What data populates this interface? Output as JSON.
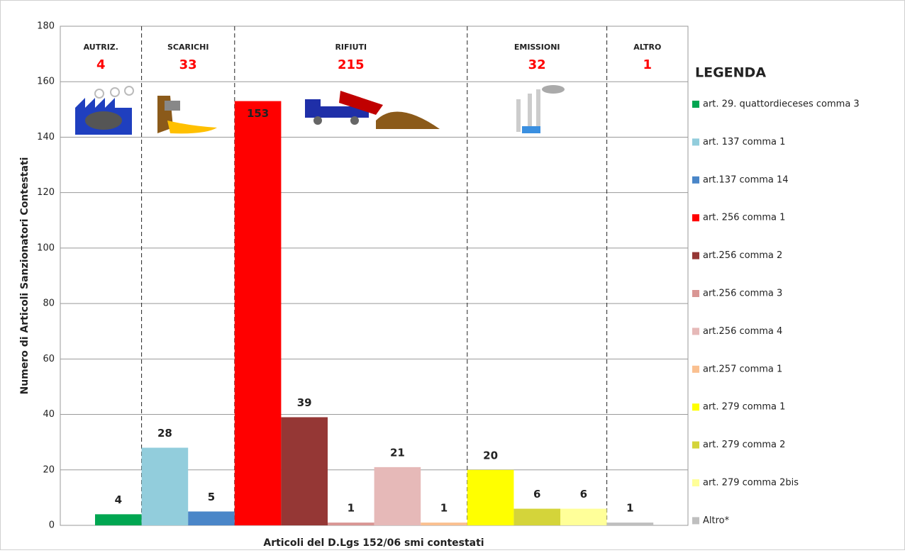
{
  "chart_data": {
    "type": "bar",
    "x_label": "Articoli del D.Lgs 152/06 smi contestati",
    "y_label": "Numero di Articoli  Sanzionatori Contestati",
    "legend_title": "LEGENDA",
    "ylim": [
      0,
      180
    ],
    "yticks": [
      0,
      20,
      40,
      60,
      80,
      100,
      120,
      140,
      160,
      180
    ],
    "grid": true,
    "groups": [
      {
        "label": "AUTRIZ.",
        "total": 4
      },
      {
        "label": "SCARICHI",
        "total": 33
      },
      {
        "label": "RIFIUTI",
        "total": 215
      },
      {
        "label": "EMISSIONI",
        "total": 32
      },
      {
        "label": "ALTRO",
        "total": 1
      }
    ],
    "series": [
      {
        "name": "art. 29. quattordieceses comma 3",
        "color": "#00a651",
        "values": [
          4
        ]
      },
      {
        "name": "art. 137 comma 1",
        "color": "#92cddc",
        "values": [
          28
        ]
      },
      {
        "name": "art.137 comma 14",
        "color": "#4a86c8",
        "values": [
          5
        ]
      },
      {
        "name": "art. 256 comma 1",
        "color": "#ff0000",
        "values": [
          153
        ]
      },
      {
        "name": "art.256 comma 2",
        "color": "#953735",
        "values": [
          39
        ]
      },
      {
        "name": "art.256 comma 3",
        "color": "#d99694",
        "values": [
          1
        ]
      },
      {
        "name": "art.256 comma 4",
        "color": "#e6b9b8",
        "values": [
          21
        ]
      },
      {
        "name": "art.257 comma 1",
        "color": "#fac090",
        "values": [
          1
        ]
      },
      {
        "name": "art. 279 comma 1",
        "color": "#ffff00",
        "values": [
          20
        ]
      },
      {
        "name": "art. 279 comma 2",
        "color": "#d4d43a",
        "values": [
          6
        ]
      },
      {
        "name": "art. 279 comma 2bis",
        "color": "#ffff99",
        "values": [
          6
        ]
      },
      {
        "name": "Altro*",
        "color": "#bfbfbf",
        "values": [
          1
        ]
      }
    ]
  }
}
